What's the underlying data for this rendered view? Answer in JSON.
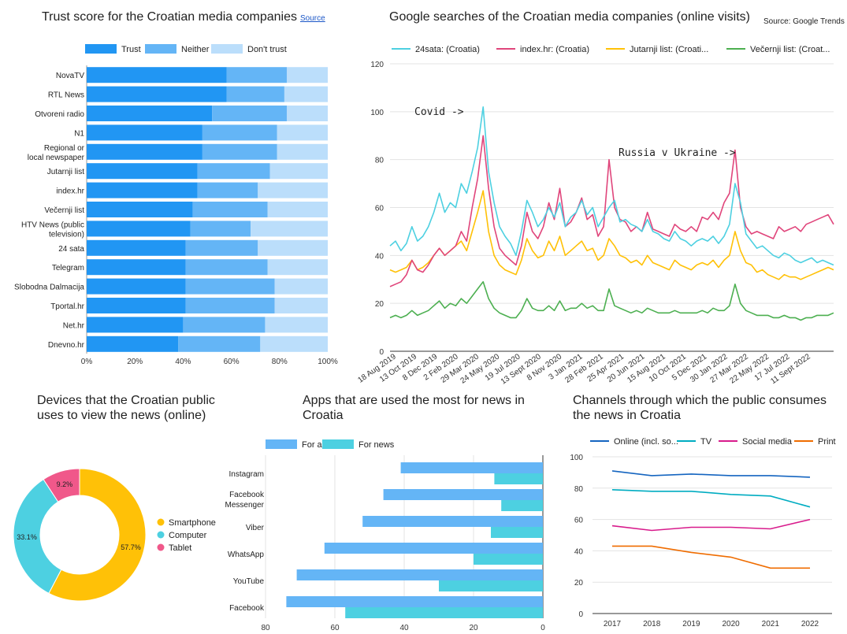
{
  "charts": {
    "trust": {
      "title": "Trust score for the Croatian media companies",
      "source_label": "Source"
    },
    "searches": {
      "title": "Google searches of the Croatian media companies (online visits)",
      "source_label": "Source: Google Trends"
    },
    "devices": {
      "title": "Devices that the Croatian public uses to view the news (online)"
    },
    "apps": {
      "title": "Apps that are used the most for news in Croatia"
    },
    "channels": {
      "title": "Channels through which the public consumes the news in Croatia"
    }
  },
  "colors": {
    "trust": "#2196f3",
    "neither": "#64b5f6",
    "dont_trust": "#bbdefb",
    "s24sata": "#4dd0e1",
    "index": "#e0457b",
    "jutarnji": "#ffc107",
    "vecernji": "#4caf50",
    "smartphone": "#ffc107",
    "computer": "#4dd0e1",
    "tablet": "#f0588a",
    "for_all": "#64b5f6",
    "for_news": "#4dd0e1",
    "online": "#1565c0",
    "tv": "#00acc1",
    "social": "#d81b8c",
    "print": "#ef6c00"
  },
  "chart_data": [
    {
      "type": "bar",
      "orientation": "horizontal-stacked",
      "categories": [
        "NovaTV",
        "RTL News",
        "Otvoreni radio",
        "N1",
        "Regional or local newspaper",
        "Jutarnji list",
        "index.hr",
        "Večernji list",
        "HTV News (public television)",
        "24 sata",
        "Telegram",
        "Slobodna Dalmacija",
        "Tportal.hr",
        "Net.hr",
        "Dnevno.hr"
      ],
      "series": [
        {
          "name": "Trust",
          "values": [
            58,
            58,
            52,
            48,
            48,
            46,
            46,
            44,
            43,
            41,
            41,
            41,
            41,
            40,
            38
          ]
        },
        {
          "name": "Neither",
          "values": [
            25,
            24,
            31,
            31,
            31,
            30,
            25,
            31,
            25,
            30,
            34,
            37,
            37,
            34,
            34
          ]
        },
        {
          "name": "Don't trust",
          "values": [
            17,
            18,
            17,
            21,
            21,
            24,
            29,
            25,
            32,
            29,
            25,
            22,
            22,
            26,
            28
          ]
        }
      ],
      "x_ticks": [
        "0%",
        "20%",
        "40%",
        "60%",
        "80%",
        "100%"
      ],
      "xlim": [
        0,
        100
      ],
      "legend": "top"
    },
    {
      "type": "line",
      "x_ticks": [
        "18 Aug 2019",
        "13 Oct 2019",
        "8 Dec 2019",
        "2 Feb 2020",
        "29 Mar 2020",
        "24 May 2020",
        "19 Jul 2020",
        "13 Sept 2020",
        "8 Nov 2020",
        "3 Jan 2021",
        "28 Feb 2021",
        "25 Apr 2021",
        "20 Jun 2021",
        "15 Aug 2021",
        "10 Oct 2021",
        "5 Dec 2021",
        "30 Jan 2022",
        "27 Mar 2022",
        "22 May 2022",
        "17 Jul 2022",
        "11 Sept 2022"
      ],
      "y_ticks": [
        "0",
        "20",
        "40",
        "60",
        "80",
        "100",
        "120"
      ],
      "ylim": [
        0,
        120
      ],
      "legend": "top",
      "annotations": [
        "Covid ->",
        "Russia v Ukraine ->"
      ],
      "series": [
        {
          "name": "24sata: (Croatia)",
          "values": [
            44,
            46,
            42,
            45,
            52,
            46,
            48,
            52,
            58,
            66,
            58,
            62,
            60,
            70,
            66,
            75,
            85,
            102,
            75,
            62,
            52,
            48,
            45,
            40,
            50,
            63,
            58,
            52,
            55,
            60,
            56,
            62,
            52,
            56,
            58,
            63,
            57,
            60,
            52,
            56,
            60,
            63,
            54,
            55,
            53,
            52,
            50,
            55,
            50,
            49,
            47,
            46,
            50,
            47,
            46,
            44,
            46,
            47,
            46,
            48,
            45,
            48,
            53,
            70,
            62,
            49,
            46,
            43,
            44,
            42,
            40,
            39,
            41,
            40,
            38,
            37,
            38,
            39,
            37,
            38,
            37,
            36
          ]
        },
        {
          "name": "index.hr: (Croatia)",
          "values": [
            27,
            28,
            29,
            32,
            38,
            34,
            33,
            36,
            40,
            43,
            40,
            42,
            44,
            50,
            46,
            60,
            72,
            90,
            68,
            52,
            43,
            40,
            38,
            36,
            44,
            58,
            50,
            47,
            52,
            62,
            55,
            68,
            52,
            54,
            58,
            64,
            55,
            57,
            48,
            52,
            80,
            60,
            55,
            54,
            50,
            52,
            50,
            58,
            51,
            50,
            49,
            48,
            53,
            51,
            50,
            52,
            50,
            56,
            55,
            58,
            55,
            62,
            66,
            84,
            60,
            52,
            49,
            50,
            49,
            48,
            47,
            52,
            50,
            51,
            52,
            50,
            53,
            54,
            55,
            56,
            57,
            53
          ]
        },
        {
          "name": "Jutarnji list: (Croati...",
          "values": [
            34,
            33,
            34,
            35,
            38,
            34,
            35,
            37,
            40,
            43,
            40,
            42,
            44,
            46,
            42,
            50,
            58,
            67,
            50,
            40,
            36,
            34,
            33,
            32,
            38,
            47,
            42,
            39,
            40,
            46,
            42,
            48,
            40,
            42,
            44,
            46,
            42,
            43,
            38,
            40,
            47,
            44,
            40,
            39,
            37,
            38,
            36,
            40,
            37,
            36,
            35,
            34,
            38,
            36,
            35,
            34,
            36,
            37,
            36,
            38,
            35,
            38,
            40,
            50,
            42,
            37,
            36,
            33,
            34,
            32,
            31,
            30,
            32,
            31,
            31,
            30,
            31,
            32,
            33,
            34,
            35,
            34
          ]
        },
        {
          "name": "Večernji list: (Croat...",
          "values": [
            14,
            15,
            14,
            15,
            17,
            15,
            16,
            17,
            19,
            21,
            18,
            20,
            19,
            22,
            20,
            23,
            26,
            29,
            22,
            18,
            16,
            15,
            14,
            14,
            17,
            22,
            18,
            17,
            17,
            19,
            17,
            21,
            17,
            18,
            18,
            20,
            18,
            19,
            17,
            17,
            26,
            19,
            18,
            17,
            16,
            17,
            16,
            18,
            17,
            16,
            16,
            16,
            17,
            16,
            16,
            16,
            16,
            17,
            16,
            18,
            17,
            17,
            19,
            28,
            20,
            17,
            16,
            15,
            15,
            15,
            14,
            14,
            15,
            14,
            14,
            13,
            14,
            14,
            15,
            15,
            15,
            16
          ]
        }
      ]
    },
    {
      "type": "pie",
      "variant": "donut",
      "labels": [
        "Smartphone",
        "Computer",
        "Tablet"
      ],
      "values": [
        57.7,
        33.1,
        9.2
      ],
      "value_labels": [
        "57.7%",
        "33.1%",
        "9.2%"
      ],
      "legend": "right"
    },
    {
      "type": "bar",
      "orientation": "horizontal-reversed",
      "categories": [
        "Instagram",
        "Facebook Messenger",
        "Viber",
        "WhatsApp",
        "YouTube",
        "Facebook"
      ],
      "series": [
        {
          "name": "For all",
          "values": [
            41,
            46,
            52,
            63,
            71,
            74
          ]
        },
        {
          "name": "For news",
          "values": [
            14,
            12,
            15,
            20,
            30,
            57
          ]
        }
      ],
      "x_ticks": [
        "80",
        "60",
        "40",
        "20",
        "0"
      ],
      "xlim": [
        80,
        0
      ],
      "legend": "top"
    },
    {
      "type": "line",
      "x": [
        "2017",
        "2018",
        "2019",
        "2020",
        "2021",
        "2022"
      ],
      "y_ticks": [
        "0",
        "20",
        "40",
        "60",
        "80",
        "100"
      ],
      "ylim": [
        0,
        100
      ],
      "legend": "top",
      "series": [
        {
          "name": "Online (incl. so...",
          "values": [
            91,
            88,
            89,
            88,
            88,
            87
          ]
        },
        {
          "name": "TV",
          "values": [
            79,
            78,
            78,
            76,
            75,
            68
          ]
        },
        {
          "name": "Social media",
          "values": [
            56,
            53,
            55,
            55,
            54,
            60
          ]
        },
        {
          "name": "Print",
          "values": [
            43,
            43,
            39,
            36,
            29,
            29
          ]
        }
      ]
    }
  ]
}
